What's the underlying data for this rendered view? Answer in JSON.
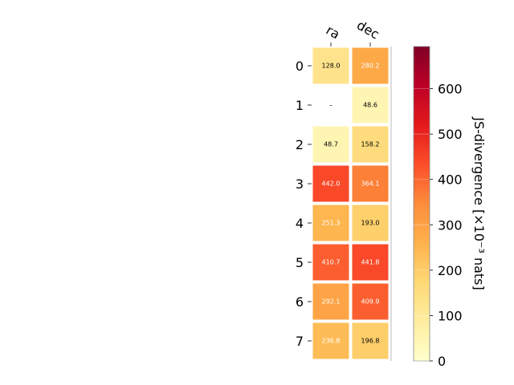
{
  "chart_data": {
    "type": "heatmap",
    "title": "",
    "columns": [
      "ra",
      "dec"
    ],
    "rows": [
      "0",
      "1",
      "2",
      "3",
      "4",
      "5",
      "6",
      "7"
    ],
    "values": [
      [
        128.0,
        280.2
      ],
      [
        null,
        48.6
      ],
      [
        48.7,
        158.2
      ],
      [
        442.0,
        364.1
      ],
      [
        251.3,
        193.0
      ],
      [
        410.7,
        441.8
      ],
      [
        292.1,
        409.9
      ],
      [
        236.8,
        196.8
      ]
    ],
    "cell_labels": [
      [
        "128.0",
        "280.2"
      ],
      [
        "–",
        "48.6"
      ],
      [
        "48.7",
        "158.2"
      ],
      [
        "442.0",
        "364.1"
      ],
      [
        "251.3",
        "193.0"
      ],
      [
        "410.7",
        "441.8"
      ],
      [
        "292.1",
        "409.9"
      ],
      [
        "236.8",
        "196.8"
      ]
    ],
    "colormap": "YlOrRd",
    "colorbar": {
      "label": "JS-divergence [×10⁻³ nats]",
      "range": [
        0,
        693
      ],
      "ticks": [
        0,
        100,
        200,
        300,
        400,
        500,
        600
      ],
      "tick_labels": [
        "0",
        "100",
        "200",
        "300",
        "400",
        "500",
        "600"
      ]
    },
    "grid": false
  }
}
